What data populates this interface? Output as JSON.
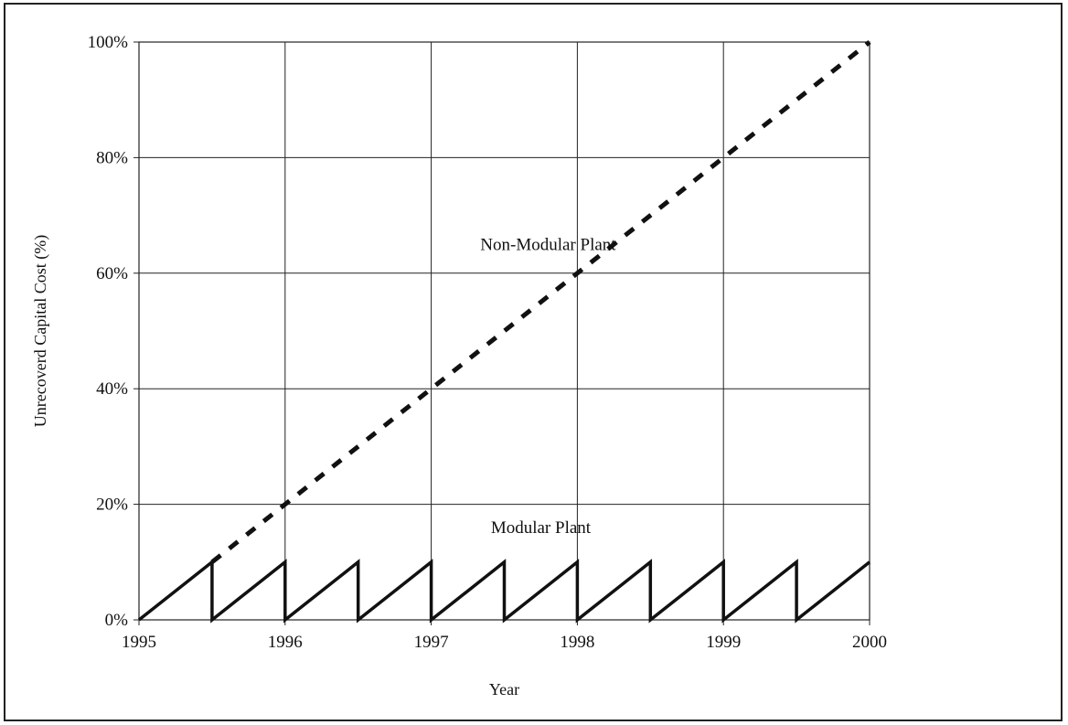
{
  "chart_data": {
    "type": "line",
    "title": "",
    "xlabel": "Year",
    "ylabel": "Unrecoverd Capital Cost (%)",
    "xlim": [
      1995,
      2000
    ],
    "ylim": [
      0,
      100
    ],
    "x_ticks": [
      "1995",
      "1996",
      "1997",
      "1998",
      "1999",
      "2000"
    ],
    "y_ticks": [
      "0%",
      "20%",
      "40%",
      "60%",
      "80%",
      "100%"
    ],
    "grid": true,
    "series": [
      {
        "name": "Non-Modular Plant",
        "style": "dashed",
        "points": [
          [
            1995.5,
            10
          ],
          [
            2000,
            100
          ]
        ]
      },
      {
        "name": "Modular Plant",
        "style": "solid",
        "points": [
          [
            1995,
            0
          ],
          [
            1995.5,
            10
          ],
          [
            1995.5,
            0
          ],
          [
            1996,
            10
          ],
          [
            1996,
            0
          ],
          [
            1996.5,
            10
          ],
          [
            1996.5,
            0
          ],
          [
            1997,
            10
          ],
          [
            1997,
            0
          ],
          [
            1997.5,
            10
          ],
          [
            1997.5,
            0
          ],
          [
            1998,
            10
          ],
          [
            1998,
            0
          ],
          [
            1998.5,
            10
          ],
          [
            1998.5,
            0
          ],
          [
            1999,
            10
          ],
          [
            1999,
            0
          ],
          [
            1999.5,
            10
          ],
          [
            1999.5,
            0
          ],
          [
            2000,
            10
          ]
        ]
      }
    ],
    "annotations": [
      {
        "text": "Non-Modular Plant",
        "x": 1997.8,
        "y": 64
      },
      {
        "text": "Modular Plant",
        "x": 1997.75,
        "y": 15
      }
    ],
    "colors": {
      "line": "#111111",
      "grid": "#222222"
    }
  }
}
